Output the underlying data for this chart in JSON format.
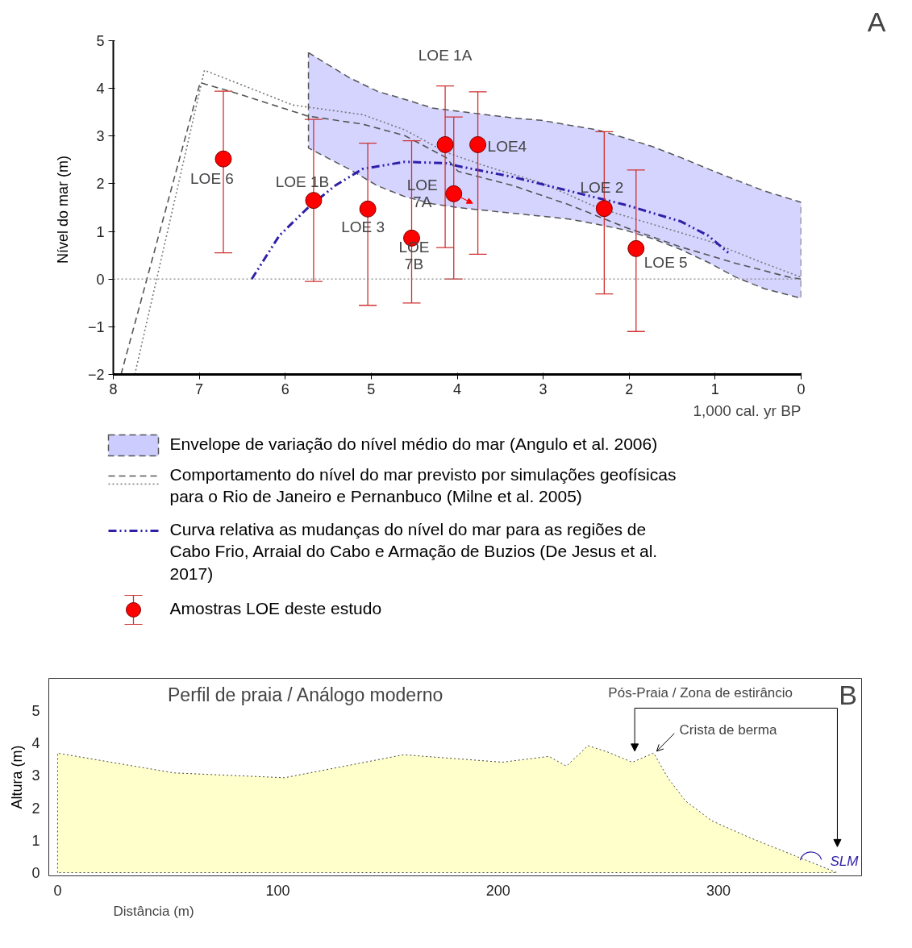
{
  "chart_data": [
    {
      "type": "line",
      "xlabel": "1,000 cal. yr BP",
      "ylabel": "Nível do mar  (m)",
      "xlim": [
        8,
        0
      ],
      "ylim": [
        -2,
        5
      ],
      "xticks": [
        8,
        7,
        6,
        5,
        4,
        3,
        2,
        1,
        0
      ],
      "yticks": [
        -2,
        -1,
        0,
        1,
        2,
        3,
        4,
        5
      ],
      "grid": false,
      "legend": "bottom",
      "series": [
        {
          "type": "area",
          "name": "Envelope de variação do nível médio do mar (Angulo et al. 2006)",
          "color": "#ccccff",
          "line_style": "dashed",
          "x": [
            5.73,
            5.26,
            4.93,
            4.61,
            4.29,
            3.99,
            3.67,
            3.35,
            3.02,
            2.7,
            2.37,
            2.05,
            1.73,
            1.4,
            1.08,
            0.76,
            0.43,
            0
          ],
          "values": [
            null,
            null,
            null,
            null,
            null,
            null,
            null,
            null,
            null,
            null,
            null,
            null,
            null,
            null,
            null,
            null,
            null,
            null
          ],
          "upper": [
            4.75,
            4.23,
            3.94,
            3.77,
            3.59,
            3.52,
            3.45,
            3.38,
            3.33,
            3.23,
            3.13,
            2.96,
            2.78,
            2.55,
            2.31,
            2.08,
            1.85,
            1.61
          ],
          "lower": [
            2.75,
            2.31,
            1.96,
            1.73,
            1.58,
            1.5,
            1.44,
            1.38,
            1.32,
            1.26,
            1.15,
            1.03,
            0.85,
            0.62,
            0.35,
            0.04,
            -0.2,
            -0.4
          ]
        },
        {
          "name": "Comportamento do nível do mar previsto por simulações geofísicas para o Rio de Janeiro e Pernanbuco (Milne et al. 2005)",
          "color": "#555555",
          "line_style": "dashed",
          "x": [
            7.91,
            6.99,
            6.55,
            5.74,
            5.1,
            4.61,
            4.13,
            3.99,
            3.35,
            2.7,
            2.05,
            1.41,
            0.76,
            0.14,
            0
          ],
          "values": [
            -2,
            4.12,
            3.89,
            3.42,
            3.25,
            3.01,
            2.55,
            2.26,
            1.96,
            1.56,
            1.09,
            0.68,
            0.33,
            0.04,
            0
          ]
        },
        {
          "color": "#777777",
          "line_style": "dotted",
          "x": [
            7.75,
            6.94,
            5.91,
            5.1,
            4.61,
            4.13,
            3.67,
            3.02,
            2.37,
            1.73,
            1.08,
            0.43,
            0
          ],
          "values": [
            -2,
            4.38,
            3.65,
            3.45,
            3.13,
            2.66,
            2.37,
            2.02,
            1.5,
            1.15,
            0.8,
            0.33,
            0.04
          ]
        },
        {
          "name": "Curva relativa as mudanças do nível do mar para as regiões de Cabo Frio, Arraial do Cabo e Armação de Buzios (De Jesus et al. 2017)",
          "color": "#2e1fa8",
          "line_style": "dashdot",
          "x": [
            6.39,
            6.07,
            5.74,
            5.42,
            5.1,
            4.61,
            4.13,
            3.99,
            3.35,
            2.7,
            2.05,
            1.4,
            1.08,
            0.82
          ],
          "values": [
            0,
            0.91,
            1.49,
            1.96,
            2.31,
            2.46,
            2.43,
            2.37,
            2.14,
            1.85,
            1.56,
            1.21,
            0.91,
            0.51
          ]
        },
        {
          "type": "scatter",
          "name": "Amostras LOE deste estudo",
          "color": "#ff0000",
          "marker": "circle",
          "x": [
            6.72,
            5.67,
            5.04,
            4.53,
            4.14,
            4.04,
            3.76,
            2.29,
            1.92
          ],
          "values": [
            2.52,
            1.65,
            1.47,
            0.86,
            2.82,
            1.79,
            2.82,
            1.48,
            0.64
          ],
          "errors": [
            [
              0.55,
              3.94
            ],
            [
              -0.05,
              3.35
            ],
            [
              -0.55,
              2.85
            ],
            [
              -0.5,
              2.9
            ],
            [
              0.66,
              4.05
            ],
            [
              0,
              3.4
            ],
            [
              0.52,
              3.93
            ],
            [
              -0.31,
              3.09
            ],
            [
              -1.1,
              2.29
            ]
          ]
        }
      ],
      "ref_lines": [
        {
          "axis": "y",
          "value": 0,
          "color": "#888888",
          "line_style": "dotted"
        }
      ],
      "annotations": [
        "A",
        "LOE 1A",
        {
          "text": "LOE 6",
          "x": 6.72,
          "y": 2.52
        },
        {
          "text": "LOE 1B",
          "x": 5.67,
          "y": 1.65
        },
        {
          "text": "LOE 3",
          "x": 5.04,
          "y": 1.47
        },
        {
          "text": "LOE 7B",
          "x": 4.53,
          "y": 0.86
        },
        {
          "text": "LOE 7A",
          "x": 4.04,
          "y": 1.79
        },
        {
          "text": "LOE4",
          "x": 3.76,
          "y": 2.82
        },
        {
          "text": "LOE 2",
          "x": 2.29,
          "y": 1.48
        },
        {
          "text": "LOE 5",
          "x": 1.92,
          "y": 0.64
        }
      ]
    },
    {
      "type": "area",
      "xlabel": "Distância (m)",
      "ylabel": "Altura (m)",
      "xlim": [
        -4,
        365
      ],
      "ylim": [
        -0.1,
        6
      ],
      "xticks": [
        0,
        100,
        200,
        300
      ],
      "yticks": [
        0,
        1,
        2,
        3,
        4,
        5
      ],
      "grid": false,
      "legend": false,
      "color": "#ffffcc",
      "line_style": "dotted",
      "x": [
        0,
        52.8,
        103,
        157.1,
        202,
        223,
        231,
        240.8,
        249.5,
        260.9,
        270.6,
        277.2,
        285.1,
        297,
        314.2,
        353.8
      ],
      "values": [
        3.69,
        3.08,
        2.93,
        3.64,
        3.41,
        3.59,
        3.29,
        3.92,
        3.73,
        3.41,
        3.69,
        2.91,
        2.21,
        1.6,
        1.08,
        0
      ],
      "annotations": [
        "Perfil de praia / Análogo moderno",
        "B",
        "Pós-Praia / Zona de estirâncio",
        {
          "text": "Crista de berma",
          "x": 272,
          "y": 3.75
        },
        {
          "text": "SLM",
          "x": 354,
          "y": 0
        }
      ]
    }
  ]
}
